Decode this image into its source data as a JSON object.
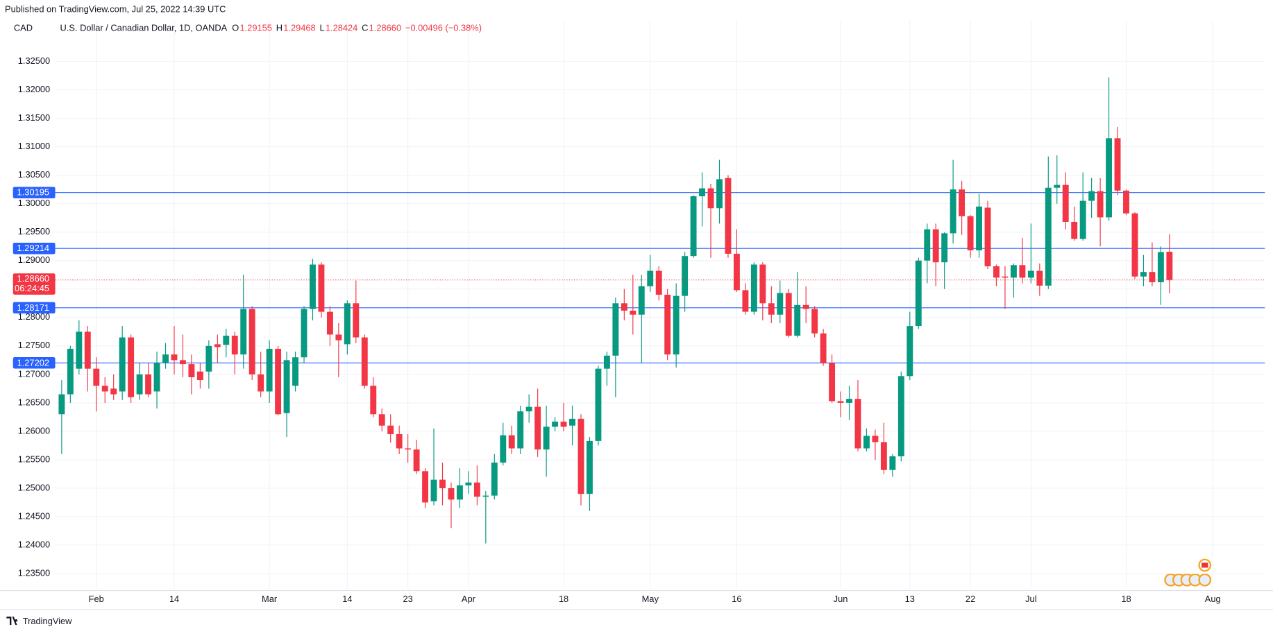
{
  "published": "Published on TradingView.com, Jul 25, 2022 14:39 UTC",
  "legend": {
    "symbol": "CAD",
    "instrument": "U.S. Dollar / Canadian Dollar, 1D, OANDA",
    "ohlc": [
      {
        "key": "O",
        "value": "1.29155"
      },
      {
        "key": "H",
        "value": "1.29468"
      },
      {
        "key": "L",
        "value": "1.28424"
      },
      {
        "key": "C",
        "value": "1.28660"
      }
    ],
    "change": "−0.00496 (−0.38%)"
  },
  "brand": "TradingView",
  "chart_data": {
    "type": "candlestick",
    "up_color": "#089981",
    "down_color": "#f23645",
    "grid": true,
    "categories": [
      null,
      null,
      null,
      null,
      "Feb",
      null,
      null,
      null,
      null,
      null,
      null,
      null,
      null,
      "14",
      null,
      null,
      null,
      null,
      null,
      null,
      null,
      null,
      null,
      null,
      "Mar",
      null,
      null,
      null,
      null,
      null,
      null,
      null,
      null,
      "14",
      null,
      null,
      null,
      null,
      null,
      null,
      "23",
      null,
      null,
      null,
      null,
      null,
      null,
      "Apr",
      null,
      null,
      null,
      null,
      null,
      null,
      null,
      null,
      null,
      null,
      "18",
      null,
      null,
      null,
      null,
      null,
      null,
      null,
      null,
      null,
      "May",
      null,
      null,
      null,
      null,
      null,
      null,
      null,
      null,
      null,
      "16",
      null,
      null,
      null,
      null,
      null,
      null,
      null,
      null,
      null,
      null,
      null,
      "Jun",
      null,
      null,
      null,
      null,
      null,
      null,
      null,
      "13",
      null,
      null,
      null,
      null,
      null,
      null,
      "22",
      null,
      null,
      null,
      null,
      null,
      null,
      "Jul",
      null,
      null,
      null,
      null,
      null,
      null,
      null,
      null,
      null,
      null,
      "18",
      null,
      null,
      null,
      null,
      null,
      null,
      null,
      null,
      null,
      "Aug"
    ],
    "open": [
      1.263,
      1.2665,
      1.271,
      1.2775,
      1.271,
      1.268,
      1.2675,
      1.267,
      1.2765,
      1.2665,
      1.27,
      1.267,
      1.272,
      1.2735,
      1.2725,
      1.2718,
      1.2705,
      1.2705,
      1.2753,
      1.2752,
      1.2768,
      1.2735,
      1.2815,
      1.27,
      1.267,
      1.2745,
      1.2632,
      1.268,
      1.273,
      1.2815,
      1.2893,
      1.281,
      1.277,
      1.2753,
      1.2825,
      1.2765,
      1.268,
      1.263,
      1.261,
      1.2595,
      1.257,
      1.2568,
      1.253,
      1.2477,
      1.2515,
      1.25,
      1.248,
      1.2505,
      1.251,
      1.2485,
      1.2487,
      1.2545,
      1.2593,
      1.257,
      1.2635,
      1.2643,
      1.2568,
      1.2608,
      1.2617,
      1.261,
      1.2622,
      1.249,
      1.2583,
      1.271,
      1.2733,
      1.2825,
      1.2812,
      1.2805,
      1.2855,
      1.2882,
      1.284,
      1.2735,
      1.2838,
      1.2908,
      1.3013,
      1.3027,
      1.2992,
      1.3045,
      1.2912,
      1.2848,
      1.281,
      1.2893,
      1.2825,
      1.2805,
      1.2843,
      1.2768,
      1.2822,
      1.2815,
      1.2772,
      1.272,
      1.2653,
      1.265,
      1.2657,
      1.257,
      1.2592,
      1.2581,
      1.2532,
      1.2556,
      1.2697,
      1.2785,
      1.29,
      1.2955,
      1.2897,
      1.2948,
      1.3025,
      1.2978,
      1.2918,
      1.2993,
      1.289,
      1.2872,
      1.287,
      1.2892,
      1.287,
      1.2882,
      1.2856,
      1.3028,
      1.3033,
      1.2968,
      1.2938,
      1.3005,
      1.3022,
      1.2976,
      1.3115,
      1.3023,
      1.2983,
      1.2872,
      1.288,
      1.2862,
      1.29155,
      null,
      null,
      null,
      null,
      null
    ],
    "high": [
      1.269,
      1.275,
      1.2795,
      1.2785,
      1.273,
      1.2695,
      1.27,
      1.2785,
      1.277,
      1.272,
      1.272,
      1.274,
      1.2755,
      1.2785,
      1.277,
      1.2735,
      1.272,
      1.276,
      1.277,
      1.278,
      1.2775,
      1.2875,
      1.282,
      1.274,
      1.276,
      1.275,
      1.274,
      1.274,
      1.282,
      1.2903,
      1.2897,
      1.282,
      1.279,
      1.283,
      1.2865,
      1.277,
      1.2695,
      1.264,
      1.263,
      1.261,
      1.2595,
      1.2585,
      1.2535,
      1.2605,
      1.2545,
      1.251,
      1.2535,
      1.253,
      1.254,
      1.2495,
      1.256,
      1.2615,
      1.261,
      1.2645,
      1.2665,
      1.2675,
      1.2645,
      1.2625,
      1.265,
      1.2645,
      1.263,
      1.259,
      1.2715,
      1.274,
      1.2835,
      1.285,
      1.2875,
      1.2875,
      1.291,
      1.289,
      1.285,
      1.286,
      1.2915,
      1.3015,
      1.3055,
      1.3035,
      1.3077,
      1.305,
      1.2955,
      1.286,
      1.2897,
      1.2897,
      1.2855,
      1.2865,
      1.285,
      1.288,
      1.2855,
      1.282,
      1.278,
      1.2735,
      1.267,
      1.268,
      1.269,
      1.2605,
      1.2603,
      1.2615,
      1.256,
      1.2705,
      1.281,
      1.2905,
      1.2965,
      1.2965,
      1.295,
      1.3077,
      1.304,
      1.298,
      1.3017,
      1.3005,
      1.2893,
      1.289,
      1.2895,
      1.294,
      1.2965,
      1.2895,
      1.3083,
      1.3085,
      1.3055,
      1.2995,
      1.3055,
      1.3045,
      1.3045,
      1.3222,
      1.3135,
      1.3025,
      1.2985,
      1.291,
      1.2932,
      1.2925,
      1.29468,
      null,
      null,
      null,
      null,
      null
    ],
    "low": [
      1.256,
      1.265,
      1.27,
      1.267,
      1.2635,
      1.265,
      1.2655,
      1.2655,
      1.265,
      1.2655,
      1.266,
      1.264,
      1.271,
      1.27,
      1.2695,
      1.2665,
      1.2675,
      1.2675,
      1.272,
      1.273,
      1.27,
      1.271,
      1.269,
      1.266,
      1.265,
      1.2628,
      1.259,
      1.267,
      1.272,
      1.2795,
      1.28,
      1.275,
      1.2695,
      1.2735,
      1.2755,
      1.2675,
      1.2625,
      1.26,
      1.258,
      1.256,
      1.2545,
      1.2525,
      1.2465,
      1.247,
      1.247,
      1.243,
      1.2465,
      1.249,
      1.247,
      1.2403,
      1.248,
      1.254,
      1.256,
      1.256,
      1.2615,
      1.2555,
      1.252,
      1.26,
      1.26,
      1.2575,
      1.247,
      1.246,
      1.2575,
      1.268,
      1.266,
      1.2795,
      1.277,
      1.272,
      1.2845,
      1.283,
      1.2725,
      1.2712,
      1.281,
      1.2905,
      1.296,
      1.2905,
      1.2965,
      1.2905,
      1.2845,
      1.2805,
      1.2805,
      1.2795,
      1.279,
      1.279,
      1.2765,
      1.2765,
      1.279,
      1.2765,
      1.2715,
      1.265,
      1.2625,
      1.262,
      1.2565,
      1.2565,
      1.255,
      1.2525,
      1.252,
      1.2547,
      1.269,
      1.278,
      1.286,
      1.2855,
      1.285,
      1.293,
      1.2945,
      1.2905,
      1.2905,
      1.2885,
      1.2855,
      1.2815,
      1.2835,
      1.286,
      1.286,
      1.2838,
      1.285,
      1.3,
      1.2955,
      1.2935,
      1.2935,
      1.2975,
      1.2925,
      1.297,
      1.3015,
      1.298,
      1.2868,
      1.2855,
      1.2855,
      1.2822,
      1.28424,
      null,
      null,
      null,
      null,
      null
    ],
    "close": [
      1.2665,
      1.2745,
      1.2775,
      1.271,
      1.268,
      1.267,
      1.2665,
      1.2765,
      1.266,
      1.27,
      1.2665,
      1.272,
      1.2735,
      1.2725,
      1.2718,
      1.2695,
      1.269,
      1.275,
      1.2748,
      1.2768,
      1.2735,
      1.2815,
      1.27,
      1.267,
      1.2745,
      1.263,
      1.2725,
      1.273,
      1.2815,
      1.2893,
      1.281,
      1.277,
      1.276,
      1.2825,
      1.2765,
      1.268,
      1.263,
      1.261,
      1.2595,
      1.257,
      1.2568,
      1.253,
      1.2475,
      1.2515,
      1.25,
      1.248,
      1.2505,
      1.251,
      1.2485,
      1.2487,
      1.2545,
      1.2593,
      1.257,
      1.2635,
      1.2643,
      1.2568,
      1.2608,
      1.2617,
      1.2608,
      1.2622,
      1.249,
      1.2583,
      1.271,
      1.2733,
      1.2825,
      1.2812,
      1.2805,
      1.2855,
      1.2882,
      1.284,
      1.2735,
      1.2838,
      1.2908,
      1.3013,
      1.3027,
      1.2992,
      1.3043,
      1.2912,
      1.2848,
      1.281,
      1.2893,
      1.2825,
      1.2805,
      1.2843,
      1.2768,
      1.2822,
      1.2815,
      1.2772,
      1.272,
      1.2653,
      1.265,
      1.2657,
      1.257,
      1.2592,
      1.2581,
      1.2532,
      1.2556,
      1.2697,
      1.2785,
      1.29,
      1.2955,
      1.2897,
      1.2948,
      1.3025,
      1.2978,
      1.2918,
      1.2995,
      1.289,
      1.287,
      1.287,
      1.2892,
      1.287,
      1.2882,
      1.2856,
      1.3028,
      1.3033,
      1.2968,
      1.2938,
      1.3005,
      1.3022,
      1.2976,
      1.3115,
      1.3023,
      1.2983,
      1.2872,
      1.288,
      1.2862,
      1.2915,
      1.2866,
      null,
      null,
      null,
      null,
      null
    ],
    "ylim": [
      1.2323,
      1.3322
    ],
    "yticks": [
      {
        "value": 1.235,
        "label": "1.23500"
      },
      {
        "value": 1.24,
        "label": "1.24000"
      },
      {
        "value": 1.245,
        "label": "1.24500"
      },
      {
        "value": 1.25,
        "label": "1.25000"
      },
      {
        "value": 1.255,
        "label": "1.25500"
      },
      {
        "value": 1.26,
        "label": "1.26000"
      },
      {
        "value": 1.265,
        "label": "1.26500"
      },
      {
        "value": 1.27,
        "label": "1.27000"
      },
      {
        "value": 1.275,
        "label": "1.27500"
      },
      {
        "value": 1.28,
        "label": "1.28000"
      },
      {
        "value": 1.285,
        "label": "1.28500"
      },
      {
        "value": 1.29,
        "label": "1.29000"
      },
      {
        "value": 1.295,
        "label": "1.29500"
      },
      {
        "value": 1.3,
        "label": "1.30000"
      },
      {
        "value": 1.305,
        "label": "1.30500"
      },
      {
        "value": 1.31,
        "label": "1.31000"
      },
      {
        "value": 1.315,
        "label": "1.31500"
      },
      {
        "value": 1.32,
        "label": "1.32000"
      },
      {
        "value": 1.325,
        "label": "1.32500"
      }
    ],
    "price_lines": [
      {
        "value": 1.30195,
        "color": "#2962ff"
      },
      {
        "value": 1.29214,
        "color": "#2962ff"
      },
      {
        "value": 1.28171,
        "color": "#2962ff"
      },
      {
        "value": 1.27202,
        "color": "#2962ff"
      }
    ],
    "last_price": {
      "value": 1.2866,
      "label": "1.28660",
      "countdown": "06:24:45",
      "color": "#f23645"
    }
  }
}
